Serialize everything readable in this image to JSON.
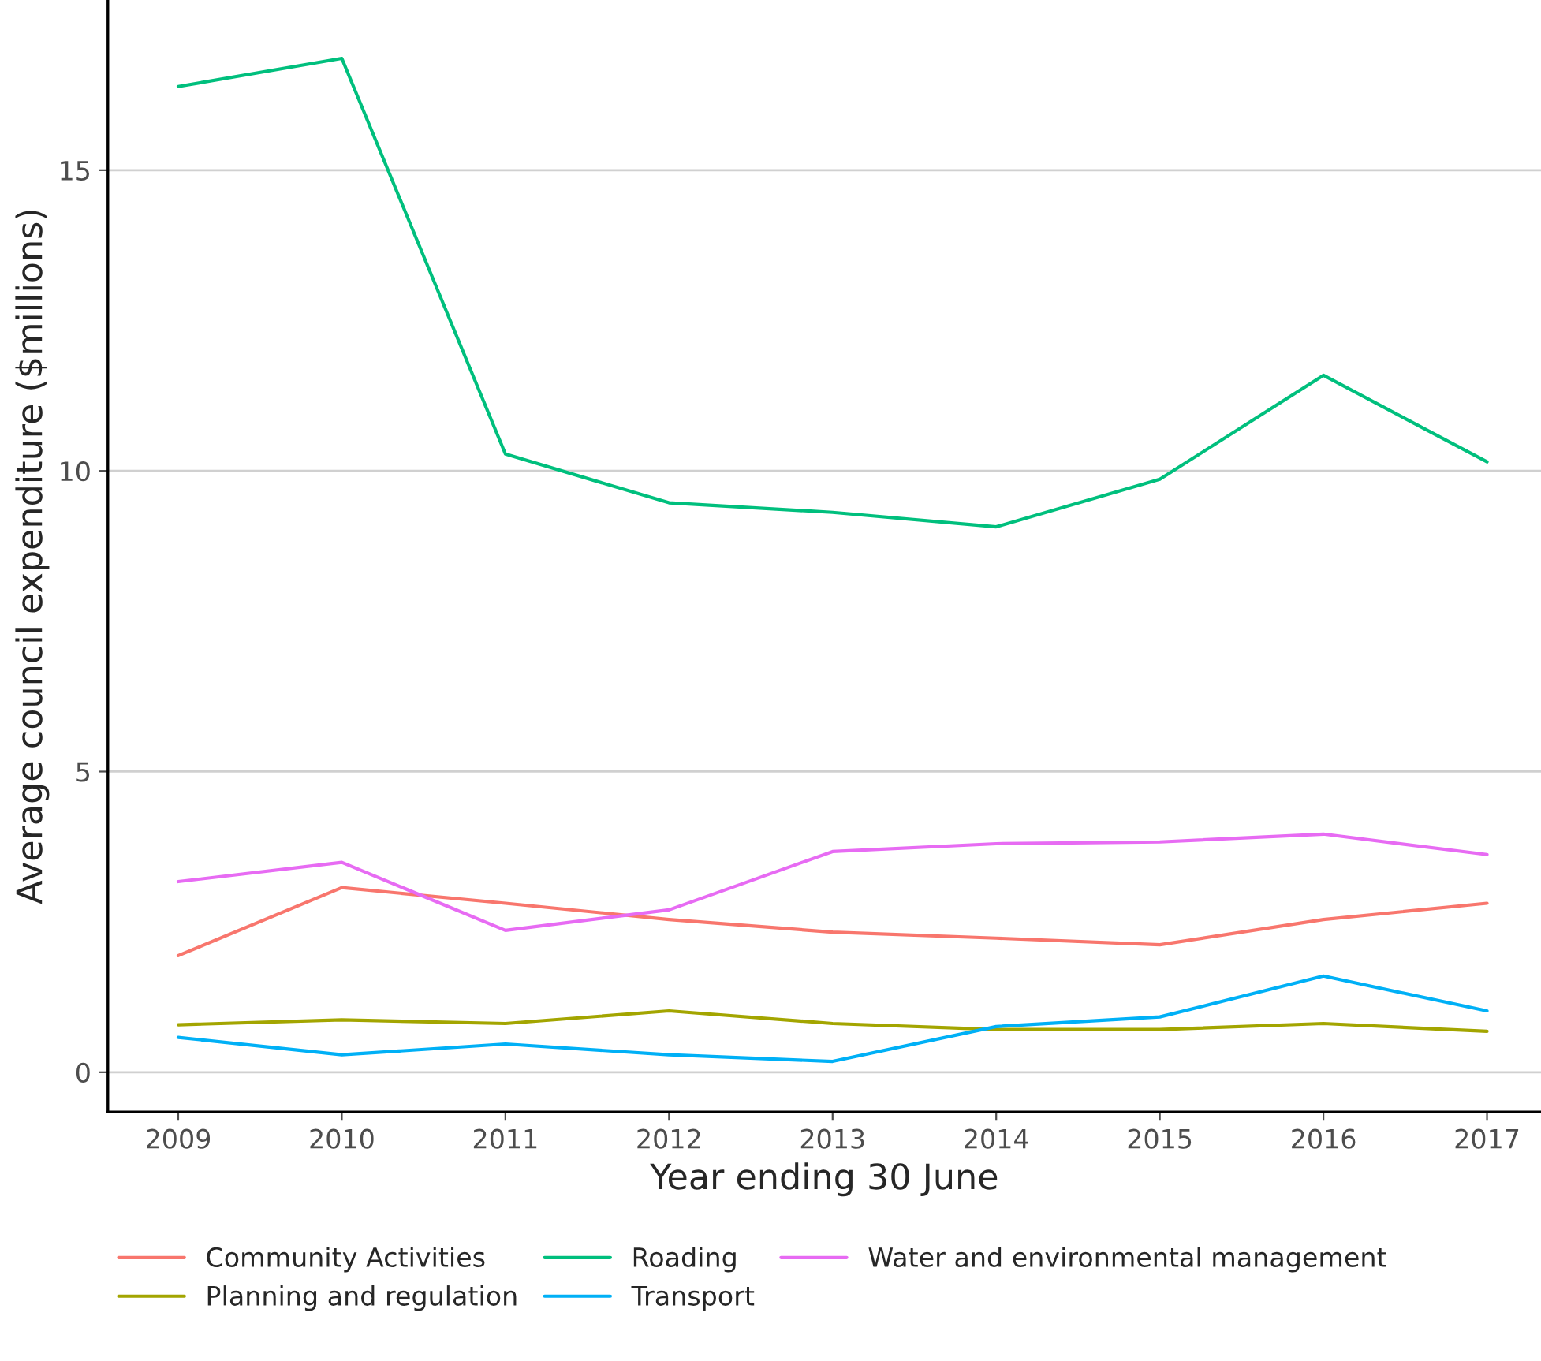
{
  "chart_data": {
    "type": "line",
    "xlabel": "Year ending 30 June",
    "ylabel": "Average council expenditure ($millions)",
    "categories": [
      "2009",
      "2010",
      "2011",
      "2012",
      "2013",
      "2014",
      "2015",
      "2016",
      "2017"
    ],
    "series": [
      {
        "name": "Community Activities",
        "color": "#f8766d",
        "values": [
          1.94,
          3.07,
          2.81,
          2.54,
          2.33,
          2.23,
          2.12,
          2.54,
          2.81
        ]
      },
      {
        "name": "Roading",
        "color": "#00bf7d",
        "values": [
          16.39,
          16.86,
          10.28,
          9.47,
          9.31,
          9.07,
          9.86,
          11.59,
          10.15
        ]
      },
      {
        "name": "Water and environmental management",
        "color": "#e76bf3",
        "values": [
          3.17,
          3.49,
          2.36,
          2.7,
          3.67,
          3.8,
          3.83,
          3.96,
          3.62
        ]
      },
      {
        "name": "Planning and regulation",
        "color": "#a3a500",
        "values": [
          0.79,
          0.87,
          0.81,
          1.02,
          0.81,
          0.71,
          0.71,
          0.81,
          0.68
        ]
      },
      {
        "name": "Transport",
        "color": "#00b0f6",
        "values": [
          0.58,
          0.29,
          0.47,
          0.29,
          0.18,
          0.76,
          0.92,
          1.6,
          1.02
        ]
      }
    ],
    "ylim": [
      -0.66,
      17.83
    ],
    "yticks": [
      0,
      5,
      10,
      15
    ],
    "grid": "y",
    "legend": "bottom"
  }
}
